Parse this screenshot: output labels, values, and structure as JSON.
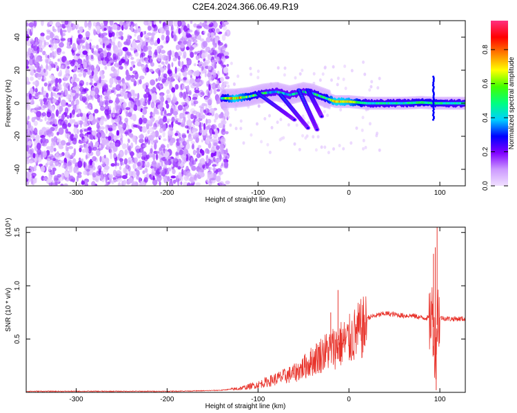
{
  "figure": {
    "title": "C2E4.2024.366.06.49.R19"
  },
  "chart_data": [
    {
      "type": "heatmap",
      "xlabel": "Height of straight line (km)",
      "ylabel": "Frequency (Hz)",
      "xlim": [
        -355,
        128
      ],
      "ylim": [
        -50,
        50
      ],
      "x_ticks": [
        -300,
        -200,
        -100,
        0,
        100
      ],
      "x_tick_labels": [
        "-300",
        "-200",
        "-100",
        "0",
        "100"
      ],
      "y_ticks": [
        -40,
        -20,
        0,
        20,
        40
      ],
      "y_tick_labels": [
        "-40",
        "-20",
        "0",
        "20",
        "40"
      ],
      "colorbar": {
        "label": "Normalized spectral amplitude",
        "range": [
          0,
          0.97
        ],
        "ticks": [
          0.0,
          0.2,
          0.4,
          0.6,
          0.8
        ],
        "tick_labels": [
          "0.0",
          "0.2",
          "0.4",
          "0.6",
          "0.8"
        ],
        "colormap": [
          "#f0e0ff",
          "#cc99ff",
          "#8000ff",
          "#0000ff",
          "#00d0ff",
          "#00ff80",
          "#40ff00",
          "#ffff00",
          "#ff8000",
          "#ff0000",
          "#ff3080"
        ]
      },
      "noise_region_x": [
        -355,
        -133
      ],
      "signal_band": [
        {
          "x": -140,
          "f": 3,
          "a": 0.45
        },
        {
          "x": -125,
          "f": 3,
          "a": 0.75
        },
        {
          "x": -110,
          "f": 4,
          "a": 0.55
        },
        {
          "x": -95,
          "f": 6,
          "a": 0.45
        },
        {
          "x": -80,
          "f": 7,
          "a": 0.4
        },
        {
          "x": -65,
          "f": 5,
          "a": 0.4
        },
        {
          "x": -50,
          "f": 7,
          "a": 0.4
        },
        {
          "x": -40,
          "f": 6,
          "a": 0.45
        },
        {
          "x": -25,
          "f": 3,
          "a": 0.5
        },
        {
          "x": -15,
          "f": 1,
          "a": 0.75
        },
        {
          "x": 0,
          "f": 1,
          "a": 0.7
        },
        {
          "x": 20,
          "f": 0,
          "a": 0.45
        },
        {
          "x": 40,
          "f": 0,
          "a": 0.45
        },
        {
          "x": 60,
          "f": 0,
          "a": 0.45
        },
        {
          "x": 80,
          "f": 0.5,
          "a": 0.5
        },
        {
          "x": 95,
          "f": 0,
          "a": 0.5
        },
        {
          "x": 110,
          "f": 0,
          "a": 0.45
        },
        {
          "x": 128,
          "f": 0,
          "a": 0.45
        }
      ],
      "streaks": [
        {
          "x0": -100,
          "f0": 6,
          "x1": -60,
          "f1": -10
        },
        {
          "x0": -75,
          "f0": 5,
          "x1": -45,
          "f1": -15
        },
        {
          "x0": -55,
          "f0": 8,
          "x1": -35,
          "f1": -16
        },
        {
          "x0": -45,
          "f0": 8,
          "x1": -30,
          "f1": -8
        }
      ]
    },
    {
      "type": "line",
      "xlabel": "Height of straight line (km)",
      "ylabel": "SNR (10 * v/v)",
      "y_multiplier_label": "(x10⁴)",
      "xlim": [
        -355,
        128
      ],
      "ylim": [
        0,
        1.55
      ],
      "x_ticks": [
        -300,
        -200,
        -100,
        0,
        100
      ],
      "x_tick_labels": [
        "-300",
        "-200",
        "-100",
        "0",
        "100"
      ],
      "y_ticks": [
        0.5,
        1.0,
        1.5
      ],
      "y_tick_labels": [
        "0.5",
        "1.0",
        "1.5"
      ],
      "color": "#e8322a",
      "series": [
        {
          "x": [
            -355,
            -300,
            -250,
            -200,
            -160,
            -140,
            -120,
            -110,
            -100,
            -90,
            -80,
            -70,
            -60,
            -50,
            -40,
            -30,
            -20,
            -10,
            0,
            10,
            20,
            30,
            40,
            50,
            60,
            70,
            80,
            88,
            92,
            95,
            98,
            100,
            110,
            128
          ],
          "y": [
            0.01,
            0.01,
            0.01,
            0.01,
            0.015,
            0.02,
            0.04,
            0.06,
            0.08,
            0.11,
            0.14,
            0.17,
            0.2,
            0.26,
            0.33,
            0.4,
            0.45,
            0.5,
            0.54,
            0.63,
            0.7,
            0.72,
            0.74,
            0.73,
            0.72,
            0.72,
            0.7,
            0.7,
            0.72,
            0.4,
            0.75,
            0.7,
            0.69,
            0.69
          ]
        }
      ],
      "spikes": [
        {
          "x": -20,
          "y": 0.75
        },
        {
          "x": -12,
          "y": 0.96
        },
        {
          "x": 93,
          "y": 1.3
        },
        {
          "x": 95,
          "y": 1.36
        },
        {
          "x": 97,
          "y": 1.58
        },
        {
          "x": 96,
          "y": 0.02
        }
      ]
    }
  ]
}
